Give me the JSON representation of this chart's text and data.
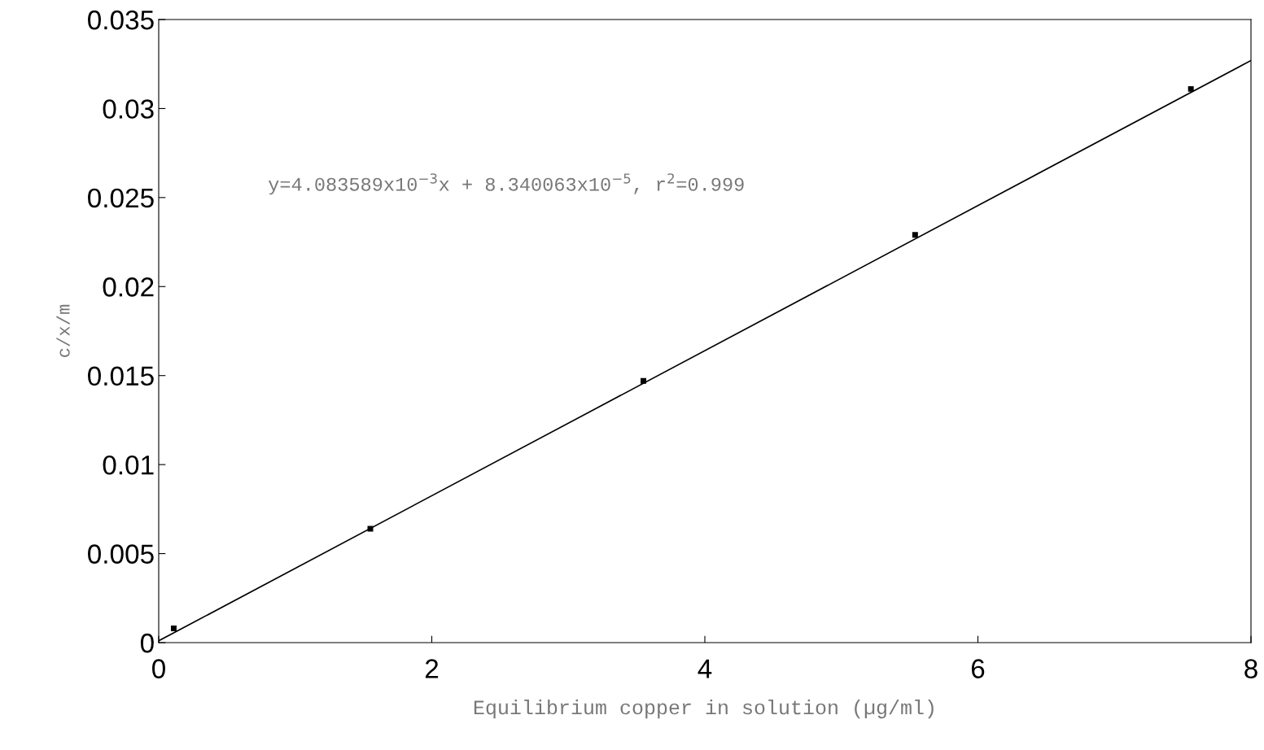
{
  "chart_data": {
    "type": "line",
    "xlabel": "Equilibrium copper in solution (µg/ml)",
    "ylabel": "c/x/m",
    "annotations": [
      "y=4.083589x10$^{−3}$x + 8.340063x10$^{−5}$, r$^{2}$=0.999"
    ],
    "xlim": [
      0,
      8
    ],
    "xticks": [
      0,
      2,
      4,
      6,
      8
    ],
    "ylim": [
      0,
      0.035
    ],
    "yticks": [
      0,
      0.005,
      0.01,
      0.015,
      0.02,
      0.025,
      0.03,
      0.035
    ],
    "grid": false,
    "series": [
      {
        "type": "scatter",
        "marker": "square",
        "color": "#000000",
        "x": [
          0.11,
          1.55,
          3.55,
          5.54,
          7.56
        ],
        "values": [
          0.0008,
          0.0064,
          0.0147,
          0.0229,
          0.0311
        ]
      },
      {
        "color": "#000000",
        "marker": "none",
        "x": [
          0,
          8
        ],
        "values": [
          0.0001,
          0.0327
        ]
      }
    ]
  }
}
